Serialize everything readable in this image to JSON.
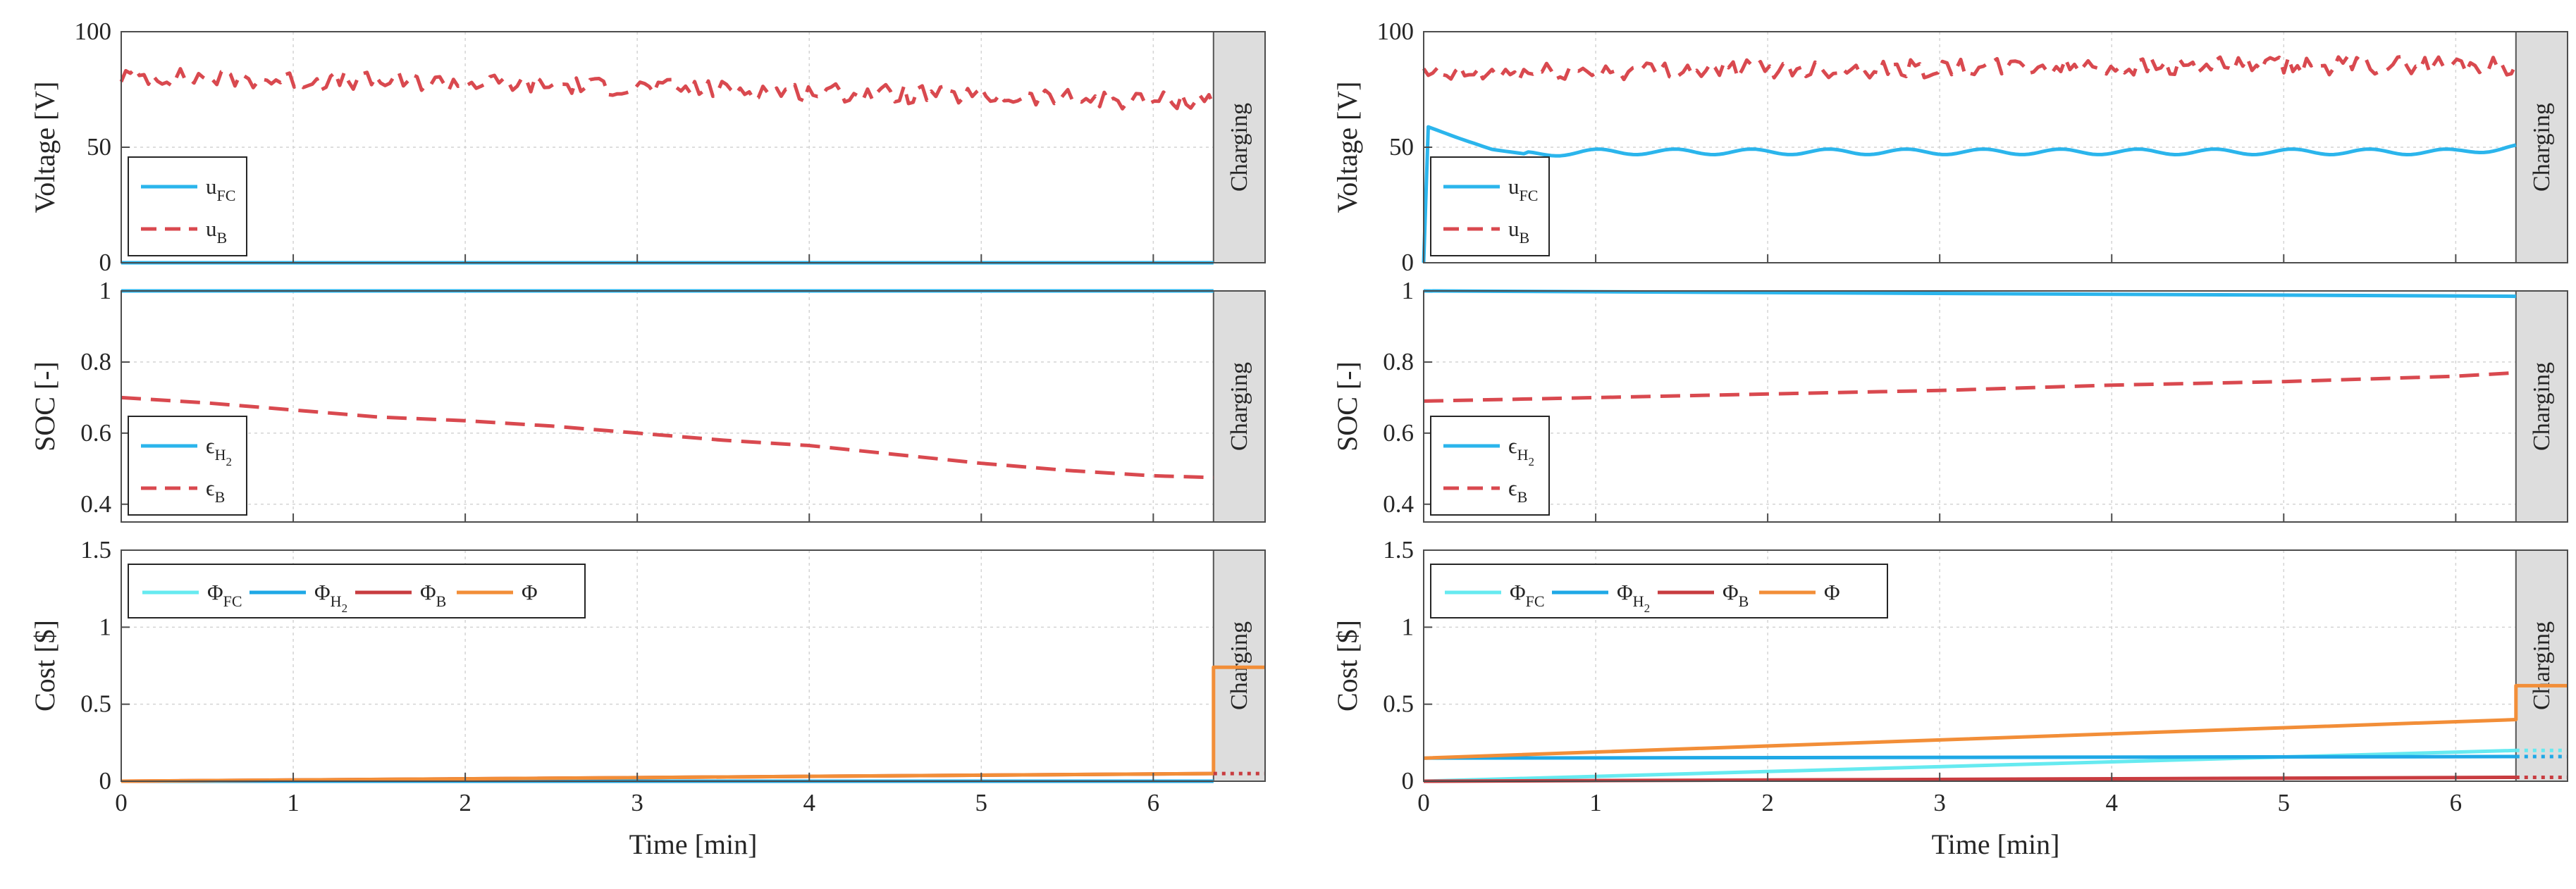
{
  "colors": {
    "u_fc": "#2bb5ec",
    "u_b": "#d9494f",
    "eps_h2": "#2bb5ec",
    "eps_b": "#d9494f",
    "phi_fc": "#66eaf0",
    "phi_h2": "#1fa8e6",
    "phi_b": "#c83c40",
    "phi": "#f28e38",
    "charging_fill": "#dddddd",
    "grid": "#d4d4d4",
    "axis": "#4d4d4d"
  },
  "charging_label": "Charging",
  "xlabel": "Time [min]",
  "legends": {
    "voltage": [
      {
        "base": "u",
        "sub": "FC",
        "style": "solid",
        "color_key": "u_fc"
      },
      {
        "base": "u",
        "sub": "B",
        "style": "dashed",
        "color_key": "u_b"
      }
    ],
    "soc": [
      {
        "base": "ϵ",
        "sub": "H",
        "subsub": "2",
        "style": "solid",
        "color_key": "eps_h2"
      },
      {
        "base": "ϵ",
        "sub": "B",
        "style": "dashed",
        "color_key": "eps_b"
      }
    ],
    "cost": [
      {
        "base": "Φ",
        "sub": "FC",
        "style": "solid",
        "color_key": "phi_fc"
      },
      {
        "base": "Φ",
        "sub": "H",
        "subsub": "2",
        "style": "solid",
        "color_key": "phi_h2"
      },
      {
        "base": "Φ",
        "sub": "B",
        "style": "solid",
        "color_key": "phi_b"
      },
      {
        "base": "Φ",
        "sub": "",
        "style": "solid",
        "color_key": "phi"
      }
    ]
  },
  "chart_data": [
    {
      "type": "line",
      "column": 0,
      "row": 0,
      "key": "voltage",
      "ylabel": "Voltage [V]",
      "xlim": [
        0,
        6.65
      ],
      "ylim": [
        0,
        100
      ],
      "xticks": [
        0,
        1,
        2,
        3,
        4,
        5,
        6
      ],
      "yticks": [
        0,
        50,
        100
      ],
      "charging_region": [
        6.35,
        6.65
      ],
      "series": [
        {
          "name": "u_FC",
          "color_key": "u_fc",
          "style": "solid",
          "x": [
            0,
            6.35
          ],
          "y": [
            0,
            0
          ]
        },
        {
          "name": "u_B",
          "color_key": "u_b",
          "style": "dashed",
          "noisy": true,
          "x": [
            0,
            1,
            2,
            3,
            4,
            5,
            6,
            6.35
          ],
          "y": [
            81,
            79,
            78,
            76,
            74,
            72,
            70,
            71
          ]
        }
      ]
    },
    {
      "type": "line",
      "column": 0,
      "row": 1,
      "key": "soc",
      "ylabel": "SOC [-]",
      "xlim": [
        0,
        6.65
      ],
      "ylim": [
        0.35,
        1.0
      ],
      "xticks": [
        0,
        1,
        2,
        3,
        4,
        5,
        6
      ],
      "yticks": [
        0.4,
        0.6,
        0.8,
        1
      ],
      "charging_region": [
        6.35,
        6.65
      ],
      "series": [
        {
          "name": "ϵ_H2",
          "color_key": "eps_h2",
          "style": "solid",
          "x": [
            0,
            6.35
          ],
          "y": [
            1.0,
            1.0
          ]
        },
        {
          "name": "ϵ_B",
          "color_key": "eps_b",
          "style": "dashed",
          "x": [
            0,
            0.5,
            1,
            1.5,
            2,
            2.5,
            3,
            3.5,
            4,
            4.5,
            5,
            5.5,
            6,
            6.35
          ],
          "y": [
            0.7,
            0.685,
            0.665,
            0.645,
            0.635,
            0.62,
            0.6,
            0.58,
            0.565,
            0.54,
            0.515,
            0.495,
            0.48,
            0.475
          ]
        }
      ]
    },
    {
      "type": "line",
      "column": 0,
      "row": 2,
      "key": "cost",
      "ylabel": "Cost [$]",
      "xlim": [
        0,
        6.65
      ],
      "ylim": [
        0,
        1.5
      ],
      "xticks": [
        0,
        1,
        2,
        3,
        4,
        5,
        6
      ],
      "yticks": [
        0,
        0.5,
        1,
        1.5
      ],
      "charging_region": [
        6.35,
        6.65
      ],
      "series": [
        {
          "name": "Φ_FC",
          "color_key": "phi_fc",
          "style": "solid",
          "x": [
            0,
            6.35
          ],
          "y": [
            0,
            0
          ]
        },
        {
          "name": "Φ_H2",
          "color_key": "phi_h2",
          "style": "solid",
          "x": [
            0,
            6.35
          ],
          "y": [
            0,
            0
          ]
        },
        {
          "name": "Φ_B",
          "color_key": "phi_b",
          "style": "solid",
          "x": [
            0,
            6.35
          ],
          "y": [
            0,
            0.05
          ]
        },
        {
          "name": "Φ",
          "color_key": "phi",
          "style": "solid",
          "x": [
            0,
            6.35,
            6.35,
            6.65
          ],
          "y": [
            0,
            0.05,
            0.74,
            0.74
          ]
        },
        {
          "name": "Φ_B (charging)",
          "color_key": "phi_b",
          "style": "dotted",
          "x": [
            6.35,
            6.65
          ],
          "y": [
            0.05,
            0.05
          ]
        }
      ]
    },
    {
      "type": "line",
      "column": 1,
      "row": 0,
      "key": "voltage",
      "ylabel": "Voltage [V]",
      "xlim": [
        0,
        6.65
      ],
      "ylim": [
        0,
        100
      ],
      "xticks": [
        0,
        1,
        2,
        3,
        4,
        5,
        6
      ],
      "yticks": [
        0,
        50,
        100
      ],
      "charging_region": [
        6.35,
        6.65
      ],
      "series": [
        {
          "name": "u_FC",
          "color_key": "u_fc",
          "style": "solid",
          "wobble": true,
          "x": [
            0,
            0.02,
            0.2,
            0.4,
            0.6,
            1,
            1.5,
            2,
            3,
            4,
            5,
            6,
            6.35
          ],
          "y": [
            0,
            59,
            54,
            49,
            47,
            48,
            48,
            48,
            48,
            48,
            48,
            48,
            50
          ]
        },
        {
          "name": "u_B",
          "color_key": "u_b",
          "style": "dashed",
          "noisy": true,
          "x": [
            0,
            1,
            2,
            3,
            4,
            5,
            6,
            6.35
          ],
          "y": [
            81,
            83,
            84,
            84,
            85,
            85,
            86,
            85
          ]
        }
      ]
    },
    {
      "type": "line",
      "column": 1,
      "row": 1,
      "key": "soc",
      "ylabel": "SOC [-]",
      "xlim": [
        0,
        6.65
      ],
      "ylim": [
        0.35,
        1.0
      ],
      "xticks": [
        0,
        1,
        2,
        3,
        4,
        5,
        6
      ],
      "yticks": [
        0.4,
        0.6,
        0.8,
        1
      ],
      "charging_region": [
        6.35,
        6.65
      ],
      "series": [
        {
          "name": "ϵ_H2",
          "color_key": "eps_h2",
          "style": "solid",
          "x": [
            0,
            6.35
          ],
          "y": [
            1.0,
            0.985
          ]
        },
        {
          "name": "ϵ_B",
          "color_key": "eps_b",
          "style": "dashed",
          "x": [
            0,
            1,
            2,
            3,
            4,
            5,
            6,
            6.35
          ],
          "y": [
            0.69,
            0.7,
            0.71,
            0.72,
            0.735,
            0.745,
            0.76,
            0.77
          ]
        }
      ]
    },
    {
      "type": "line",
      "column": 1,
      "row": 2,
      "key": "cost",
      "ylabel": "Cost [$]",
      "xlim": [
        0,
        6.65
      ],
      "ylim": [
        0,
        1.5
      ],
      "xticks": [
        0,
        1,
        2,
        3,
        4,
        5,
        6
      ],
      "yticks": [
        0,
        0.5,
        1,
        1.5
      ],
      "charging_region": [
        6.35,
        6.65
      ],
      "series": [
        {
          "name": "Φ_FC",
          "color_key": "phi_fc",
          "style": "solid",
          "x": [
            0,
            6.35
          ],
          "y": [
            0,
            0.2
          ]
        },
        {
          "name": "Φ_H2",
          "color_key": "phi_h2",
          "style": "solid",
          "x": [
            0,
            6.35
          ],
          "y": [
            0.15,
            0.16
          ]
        },
        {
          "name": "Φ_B",
          "color_key": "phi_b",
          "style": "solid",
          "x": [
            0,
            6.35
          ],
          "y": [
            0,
            0.025
          ]
        },
        {
          "name": "Φ",
          "color_key": "phi",
          "style": "solid",
          "x": [
            0,
            6.35,
            6.35,
            6.65
          ],
          "y": [
            0.15,
            0.4,
            0.62,
            0.62
          ]
        },
        {
          "name": "Φ_FC (charging)",
          "color_key": "phi_fc",
          "style": "dotted",
          "x": [
            6.35,
            6.65
          ],
          "y": [
            0.2,
            0.2
          ]
        },
        {
          "name": "Φ_H2 (charging)",
          "color_key": "phi_h2",
          "style": "dotted",
          "x": [
            6.35,
            6.65
          ],
          "y": [
            0.16,
            0.16
          ]
        },
        {
          "name": "Φ_B (charging)",
          "color_key": "phi_b",
          "style": "dotted",
          "x": [
            6.35,
            6.65
          ],
          "y": [
            0.025,
            0.025
          ]
        }
      ]
    }
  ]
}
